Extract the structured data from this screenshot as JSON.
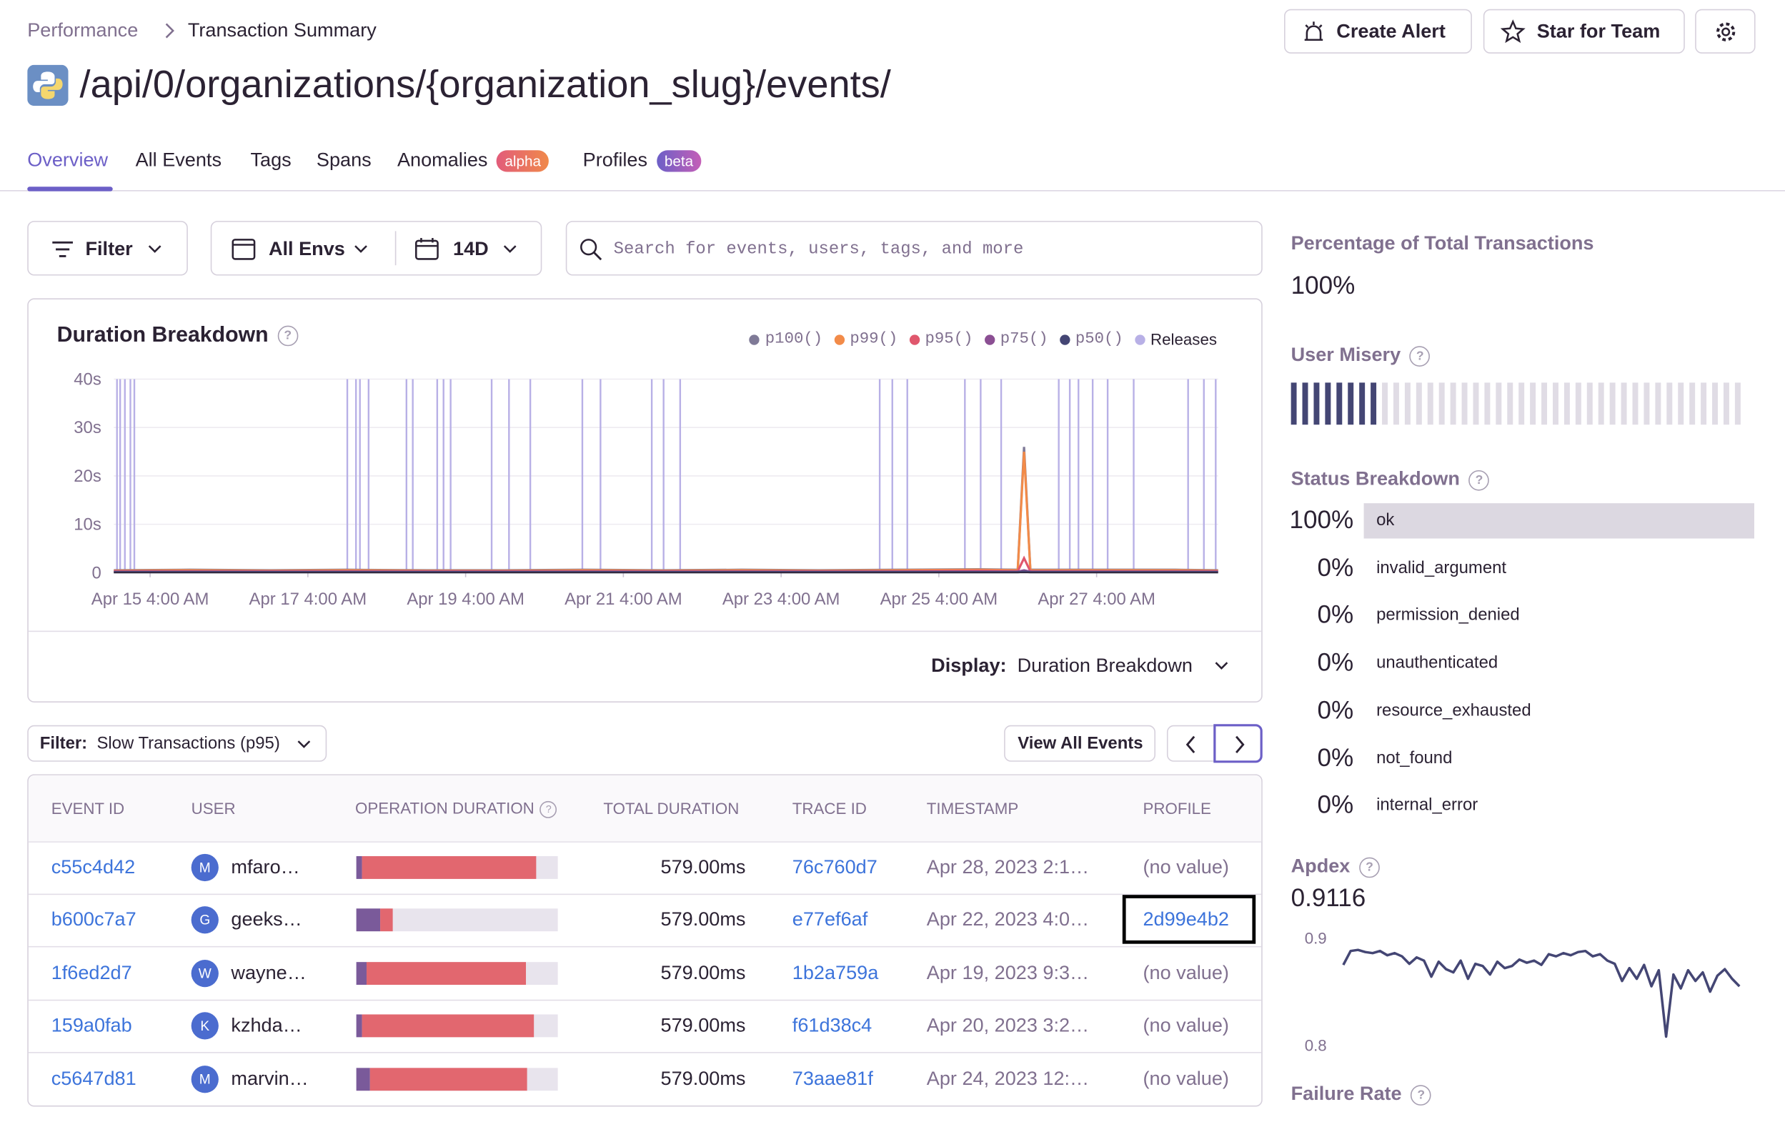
{
  "breadcrumbs": [
    "Performance",
    "Transaction Summary"
  ],
  "header": {
    "title": "/api/0/organizations/{organization_slug}/events/",
    "buttons": [
      "Create Alert",
      "Star for Team"
    ]
  },
  "tabs": [
    {
      "label": "Overview",
      "active": true
    },
    {
      "label": "All Events"
    },
    {
      "label": "Tags"
    },
    {
      "label": "Spans"
    },
    {
      "label": "Anomalies",
      "badge": "alpha"
    },
    {
      "label": "Profiles",
      "badge": "beta"
    }
  ],
  "filters": {
    "filter": "Filter",
    "environment": "All Envs",
    "period": "14D",
    "search_placeholder": "Search for events, users, tags, and more"
  },
  "chart_data": {
    "type": "line",
    "title": "Duration Breakdown",
    "xlim": [
      -0.46,
      13.54
    ],
    "xticks": [
      {
        "value": 0,
        "label": "Apr 15 4:00 AM"
      },
      {
        "value": 2,
        "label": "Apr 17 4:00 AM"
      },
      {
        "value": 4,
        "label": "Apr 19 4:00 AM"
      },
      {
        "value": 6,
        "label": "Apr 21 4:00 AM"
      },
      {
        "value": 8,
        "label": "Apr 23 4:00 AM"
      },
      {
        "value": 10,
        "label": "Apr 25 4:00 AM"
      },
      {
        "value": 12,
        "label": "Apr 27 4:00 AM"
      }
    ],
    "ylim": [
      0,
      40
    ],
    "yticks": [
      0,
      {
        "value": 10,
        "label": "10s"
      },
      {
        "value": 20,
        "label": "20s"
      },
      {
        "value": 30,
        "label": "30s"
      },
      {
        "value": 40,
        "label": "40s"
      }
    ],
    "x": [
      -0.46,
      0.5,
      1.5,
      2.5,
      3.5,
      4.5,
      5.5,
      6.5,
      7.5,
      8.5,
      9.5,
      10.5,
      11.0,
      11.08,
      11.16,
      12.0,
      13.0,
      13.54
    ],
    "series": [
      {
        "name": "p100()",
        "color": "#7f7a97",
        "values": [
          0.5,
          0.6,
          0.5,
          0.6,
          0.5,
          0.5,
          0.6,
          0.5,
          0.6,
          0.5,
          0.6,
          0.7,
          0.6,
          26,
          0.6,
          0.6,
          0.6,
          0.5
        ]
      },
      {
        "name": "p99()",
        "color": "#f28b49",
        "values": [
          0.4,
          0.5,
          0.4,
          0.5,
          0.4,
          0.4,
          0.5,
          0.4,
          0.5,
          0.4,
          0.5,
          0.6,
          0.5,
          25,
          0.5,
          0.5,
          0.5,
          0.4
        ]
      },
      {
        "name": "p95()",
        "color": "#e0576d",
        "values": [
          0.3,
          0.3,
          0.3,
          0.3,
          0.3,
          0.3,
          0.3,
          0.3,
          0.3,
          0.3,
          0.3,
          0.4,
          0.3,
          3,
          0.3,
          0.3,
          0.3,
          0.3
        ]
      },
      {
        "name": "p75()",
        "color": "#8b4f93",
        "values": [
          0.2,
          0.2,
          0.2,
          0.2,
          0.2,
          0.2,
          0.2,
          0.2,
          0.2,
          0.2,
          0.2,
          0.2,
          0.2,
          0.5,
          0.2,
          0.2,
          0.2,
          0.2
        ]
      },
      {
        "name": "p50()",
        "color": "#444674",
        "values": [
          0.1,
          0.1,
          0.1,
          0.1,
          0.1,
          0.1,
          0.1,
          0.1,
          0.1,
          0.1,
          0.1,
          0.1,
          0.1,
          0.2,
          0.1,
          0.1,
          0.1,
          0.1
        ]
      }
    ],
    "releases": {
      "name": "Releases",
      "color": "#b8b0e6",
      "x": [
        -0.42,
        -0.38,
        -0.32,
        -0.25,
        -0.2,
        2.5,
        2.61,
        2.66,
        2.77,
        3.25,
        3.33,
        3.64,
        3.72,
        3.81,
        4.33,
        4.55,
        4.82,
        5.48,
        5.71,
        6.36,
        6.51,
        6.72,
        9.25,
        9.41,
        9.6,
        10.33,
        10.53,
        10.79,
        11.52,
        11.66,
        11.77,
        11.95,
        12.14,
        12.47,
        13.16,
        13.36,
        13.51
      ]
    },
    "display_label": "Display:",
    "display_value": "Duration Breakdown"
  },
  "events": {
    "filter_label": "Filter:",
    "filter_value": "Slow Transactions (p95)",
    "view_all": "View All Events",
    "selected_profile_row": 1,
    "columns": [
      "EVENT ID",
      "USER",
      "OPERATION DURATION",
      "TOTAL DURATION",
      "TRACE ID",
      "TIMESTAMP",
      "PROFILE"
    ],
    "rows": [
      {
        "event_id": "c55c4d42",
        "initial": "M",
        "user": "mfaro…",
        "op_breakdown": [
          0.03,
          0.86
        ],
        "total": "579.00ms",
        "trace_id": "76c760d7",
        "timestamp": "Apr 28, 2023 2:1…",
        "profile": "(no value)"
      },
      {
        "event_id": "b600c7a7",
        "initial": "G",
        "user": "geeks…",
        "op_breakdown": [
          0.12,
          0.06
        ],
        "total": "579.00ms",
        "trace_id": "e77ef6af",
        "timestamp": "Apr 22, 2023 4:0…",
        "profile": "2d99e4b2"
      },
      {
        "event_id": "1f6ed2d7",
        "initial": "W",
        "user": "wayne…",
        "op_breakdown": [
          0.05,
          0.79
        ],
        "total": "579.00ms",
        "trace_id": "1b2a759a",
        "timestamp": "Apr 19, 2023 9:3…",
        "profile": "(no value)"
      },
      {
        "event_id": "159a0fab",
        "initial": "K",
        "user": "kzhda…",
        "op_breakdown": [
          0.03,
          0.85
        ],
        "total": "579.00ms",
        "trace_id": "f61d38c4",
        "timestamp": "Apr 20, 2023 3:2…",
        "profile": "(no value)"
      },
      {
        "event_id": "c5647d81",
        "initial": "M",
        "user": "marvin…",
        "op_breakdown": [
          0.07,
          0.78
        ],
        "total": "579.00ms",
        "trace_id": "73aae81f",
        "timestamp": "Apr 24, 2023 12:…",
        "profile": "(no value)"
      }
    ]
  },
  "sidebar": {
    "percentage_title": "Percentage of Total Transactions",
    "percentage": "100%",
    "misery_title": "User Misery",
    "user_misery": {
      "filled": 8,
      "total": 40
    },
    "status_title": "Status Breakdown",
    "status": [
      {
        "value": 100,
        "value_label": "100%",
        "label": "ok"
      },
      {
        "value": 0,
        "value_label": "0%",
        "label": "invalid_argument"
      },
      {
        "value": 0,
        "value_label": "0%",
        "label": "permission_denied"
      },
      {
        "value": 0,
        "value_label": "0%",
        "label": "unauthenticated"
      },
      {
        "value": 0,
        "value_label": "0%",
        "label": "resource_exhausted"
      },
      {
        "value": 0,
        "value_label": "0%",
        "label": "not_found"
      },
      {
        "value": 0,
        "value_label": "0%",
        "label": "internal_error"
      }
    ],
    "apdex_title": "Apdex",
    "apdex": "0.9116",
    "apdex_chart": {
      "type": "line",
      "ylim": [
        0.8,
        0.9
      ],
      "yticks": [
        0.8,
        0.9
      ],
      "color": "#444674",
      "values": [
        0.875,
        0.888,
        0.889,
        0.887,
        0.886,
        0.888,
        0.884,
        0.886,
        0.883,
        0.876,
        0.882,
        0.879,
        0.864,
        0.878,
        0.871,
        0.868,
        0.879,
        0.862,
        0.876,
        0.874,
        0.866,
        0.878,
        0.872,
        0.874,
        0.88,
        0.877,
        0.879,
        0.875,
        0.885,
        0.883,
        0.886,
        0.884,
        0.887,
        0.888,
        0.883,
        0.885,
        0.879,
        0.876,
        0.86,
        0.872,
        0.862,
        0.875,
        0.855,
        0.87,
        0.808,
        0.866,
        0.853,
        0.87,
        0.86,
        0.868,
        0.85,
        0.865,
        0.871,
        0.862,
        0.855
      ]
    },
    "failure_title": "Failure Rate"
  }
}
